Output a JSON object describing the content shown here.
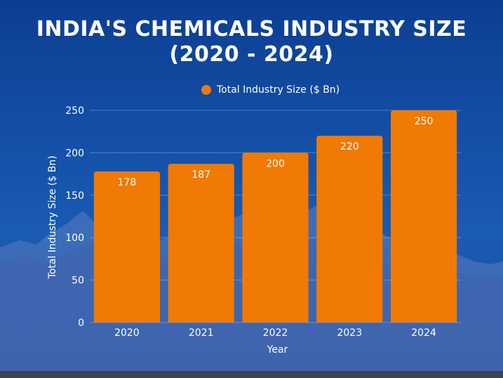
{
  "chart_data": {
    "type": "bar",
    "title_line_1": "INDIA'S CHEMICALS INDUSTRY SIZE",
    "title_line_2": "(2020 - 2024)",
    "xlabel": "Year",
    "ylabel": "Total Industry Size ($ Bn)",
    "legend": "Total Industry Size ($ Bn)",
    "categories": [
      "2020",
      "2021",
      "2022",
      "2023",
      "2024"
    ],
    "values": [
      178,
      187,
      200,
      220,
      250
    ],
    "yticks": [
      0,
      50,
      100,
      150,
      200,
      250
    ],
    "ylim": [
      0,
      250
    ],
    "grid": true,
    "bar_color": "#f07a04"
  }
}
